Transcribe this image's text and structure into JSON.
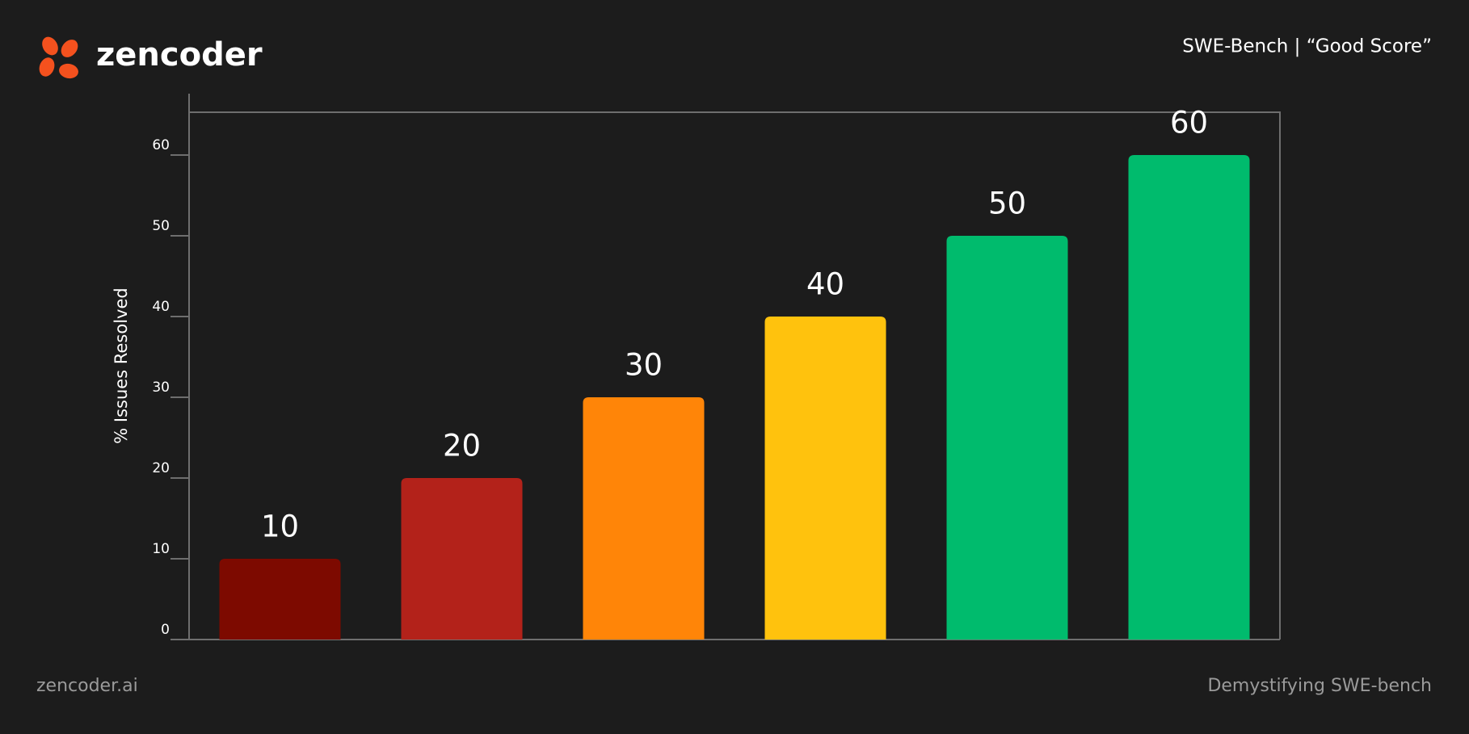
{
  "brand": "zencoder",
  "header_right": "SWE-Bench | “Good Score”",
  "footer_left": "zencoder.ai",
  "footer_right": "Demystifying SWE-bench",
  "chart_data": {
    "type": "bar",
    "y_label": "% Issues Resolved",
    "categories": [
      null,
      null,
      null,
      null,
      null,
      null
    ],
    "values": [
      10,
      20,
      30,
      40,
      50,
      60
    ],
    "colors": [
      "#7d0a00",
      "#b3221a",
      "#ff8508",
      "#ffc20d",
      "#00bb6d",
      "#00bb6d"
    ],
    "ylim": [
      0,
      65.3
    ],
    "yticks": [
      0,
      10,
      20,
      30,
      40,
      50,
      60
    ],
    "grid": false
  }
}
